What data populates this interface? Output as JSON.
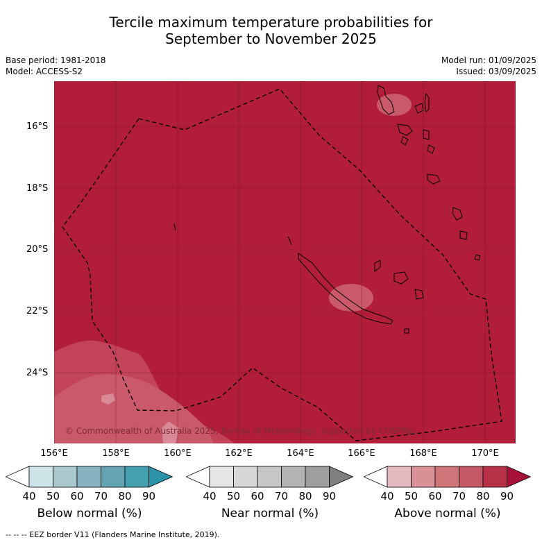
{
  "title_line1": "Tercile maximum temperature probabilities for",
  "title_line2": "September to November 2025",
  "base_period": "Base period: 1981-2018",
  "model": "Model: ACCESS-S2",
  "model_run": "Model run: 01/09/2025",
  "issued": "Issued: 03/09/2025",
  "copyright": "© Commonwealth of Australia 2025, Bureau of Meteorology, supported by COSPPac",
  "lat_labels": [
    "16°S",
    "18°S",
    "20°S",
    "22°S",
    "24°S"
  ],
  "lon_labels": [
    "156°E",
    "158°E",
    "160°E",
    "162°E",
    "164°E",
    "166°E",
    "168°E",
    "170°E"
  ],
  "colorbars": [
    {
      "name": "Below normal (%)",
      "ticks": [
        "40",
        "50",
        "60",
        "70",
        "80",
        "90"
      ],
      "colors": [
        "#ffffff",
        "#cce3e8",
        "#a9c9cf",
        "#86b3bf",
        "#64a3b1",
        "#45a0b0",
        "#2b92a8"
      ]
    },
    {
      "name": "Near normal (%)",
      "ticks": [
        "40",
        "50",
        "60",
        "70",
        "80",
        "90"
      ],
      "colors": [
        "#ffffff",
        "#e5e5e5",
        "#d6d6d6",
        "#c6c6c6",
        "#b3b3b3",
        "#9e9e9e",
        "#7f7f7f"
      ]
    },
    {
      "name": "Above normal (%)",
      "ticks": [
        "40",
        "50",
        "60",
        "70",
        "80",
        "90"
      ],
      "colors": [
        "#ffffff",
        "#e3b8bf",
        "#d99197",
        "#cf7479",
        "#c55a66",
        "#b83247",
        "#a8123a"
      ]
    }
  ],
  "legend_footer": "--  --  -- EEZ border V11 (Flanders Marine Institute, 2019).",
  "map_colors": {
    "above_80_90": "#b21d3a",
    "above_70_80": "#c54a5c",
    "above_60_70": "#d0707c",
    "border": "#000000"
  }
}
